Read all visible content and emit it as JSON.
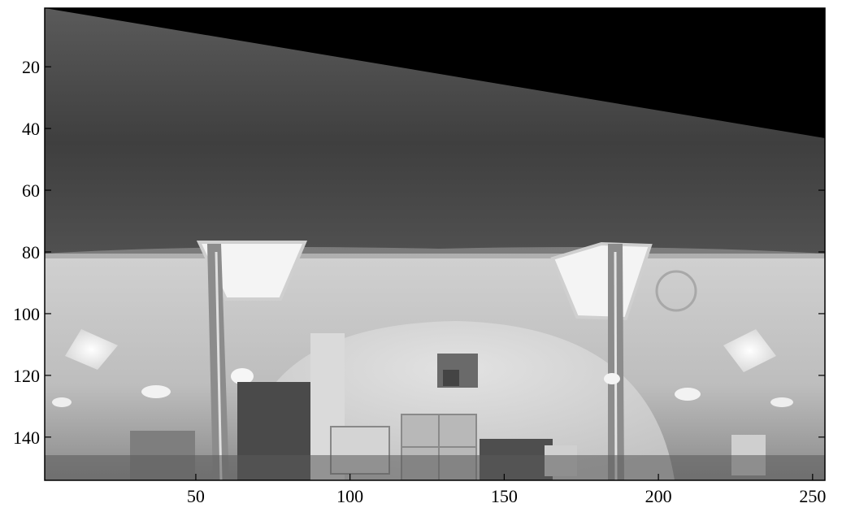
{
  "figure": {
    "type": "grayscale-image-plot",
    "x_axis": {
      "ticks": [
        50,
        100,
        150,
        200,
        250
      ],
      "range": [
        1,
        254
      ]
    },
    "y_axis": {
      "ticks": [
        20,
        40,
        60,
        80,
        100,
        120,
        140
      ],
      "range": [
        1,
        154
      ],
      "inverted": true
    },
    "scene": "panoramic indoor view: ceiling with lights and pillars over an office area"
  },
  "colors": {
    "ceiling": "#4a4a4a",
    "floor_bg": "#c9c9c9",
    "black": "#000000",
    "light": "#f6f6f6"
  }
}
